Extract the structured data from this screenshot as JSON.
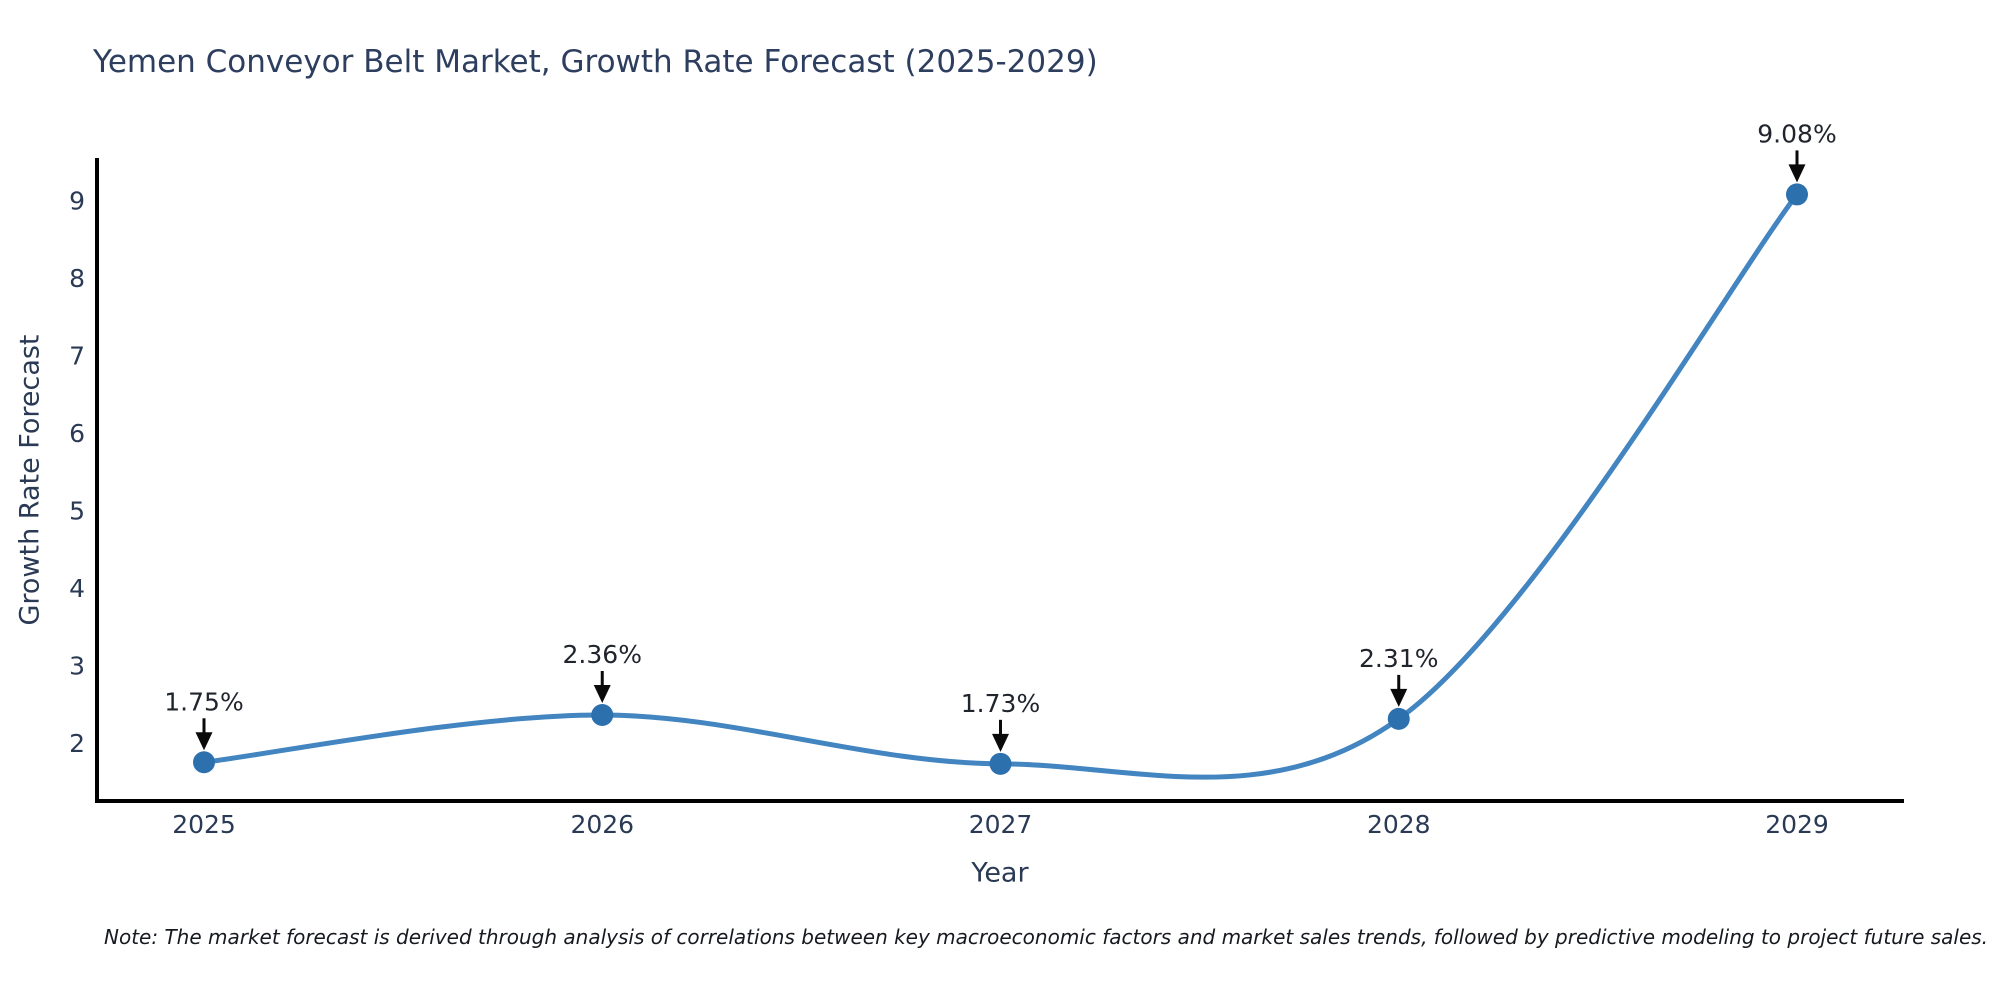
{
  "note": "Note: The market forecast is derived through analysis of correlations between key macroeconomic factors and market sales trends, followed by predictive modeling to project future sales.",
  "chart_data": {
    "type": "line",
    "title": "Yemen Conveyor Belt Market, Growth Rate Forecast (2025-2029)",
    "xlabel": "Year",
    "ylabel": "Growth Rate Forecast",
    "categories": [
      "2025",
      "2026",
      "2027",
      "2028",
      "2029"
    ],
    "series": [
      {
        "name": "Growth Rate Forecast",
        "values": [
          1.75,
          2.36,
          1.73,
          2.31,
          9.08
        ]
      }
    ],
    "point_labels": [
      "1.75%",
      "2.36%",
      "1.73%",
      "2.31%",
      "9.08%"
    ],
    "yticks": [
      2,
      3,
      4,
      5,
      6,
      7,
      8,
      9
    ],
    "ylim": [
      1.25,
      9.55
    ],
    "grid": false,
    "legend": false,
    "smooth": true,
    "colors": {
      "line": "#4285c0",
      "marker": "#2d70ae",
      "axis": "#000000",
      "tick_text": "#2a3a55",
      "annotation_text": "#20242c",
      "arrow": "#0a0a0a"
    }
  }
}
